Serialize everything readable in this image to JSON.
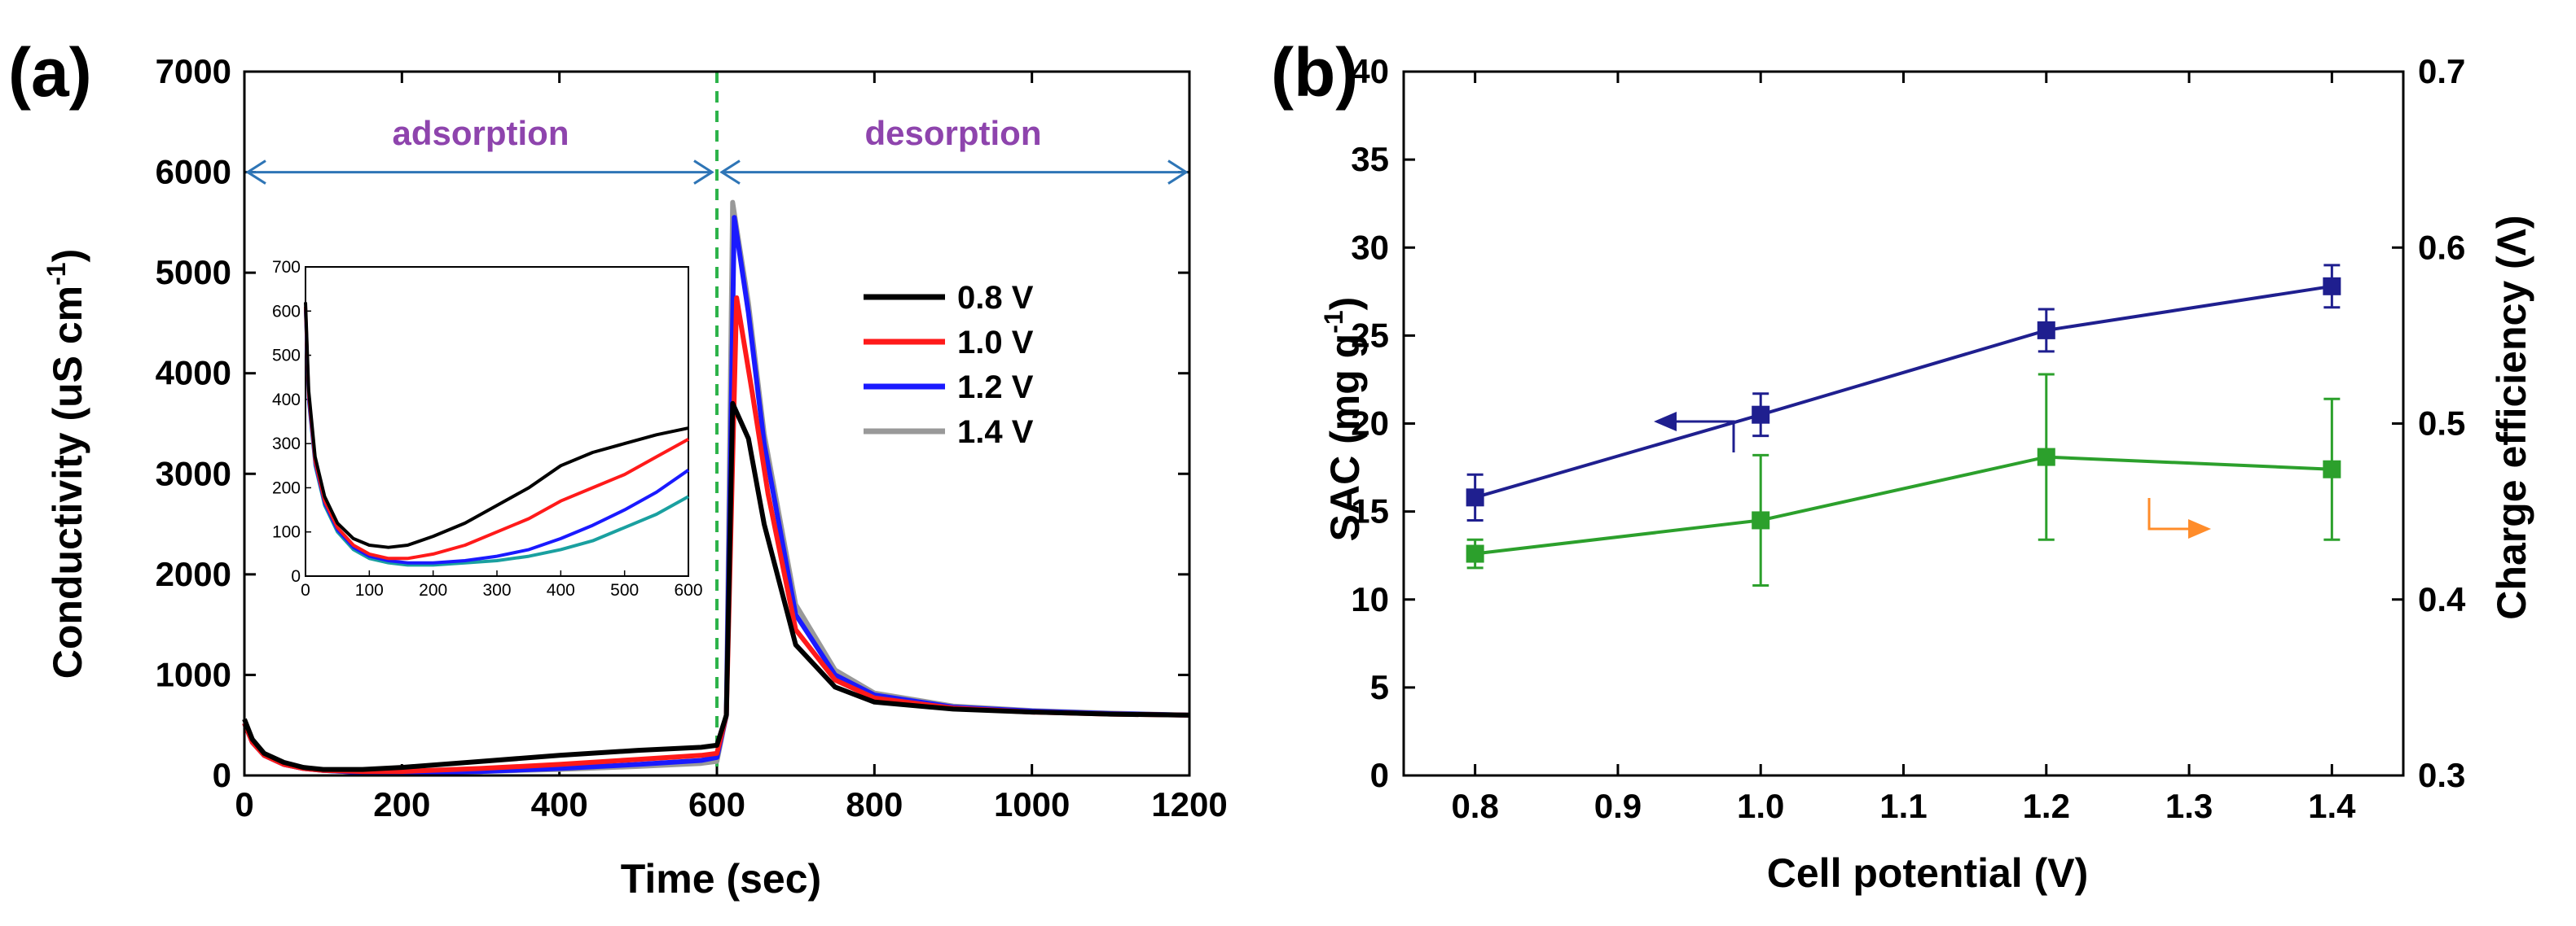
{
  "chart_data": [
    {
      "type": "line",
      "panel_label": "(a)",
      "xlabel": "Time (sec)",
      "ylabel": "Conductivity (uS cm",
      "ylabel_sup": "-1",
      "ylabel_close": ")",
      "xlim": [
        0,
        1200
      ],
      "ylim": [
        0,
        7000
      ],
      "xticks": [
        "0",
        "200",
        "400",
        "600",
        "800",
        "1000",
        "1200"
      ],
      "yticks": [
        "0",
        "1000",
        "2000",
        "3000",
        "4000",
        "5000",
        "6000",
        "7000"
      ],
      "annotations": {
        "adsorption": "adsorption",
        "desorption": "desorption",
        "phase_boundary_x": 600,
        "arrow_level_y": 6000
      },
      "colors": {
        "adsorption_text": "#8e44ad",
        "arrow": "#2e75b6",
        "boundary": "#2db34a"
      },
      "series": [
        {
          "name": "0.8 V",
          "color": "#000000",
          "x": [
            0,
            10,
            25,
            50,
            75,
            100,
            150,
            200,
            300,
            400,
            500,
            580,
            600,
            612,
            620,
            640,
            660,
            700,
            750,
            800,
            900,
            1000,
            1100,
            1200
          ],
          "y": [
            560,
            360,
            220,
            130,
            80,
            60,
            60,
            80,
            140,
            200,
            250,
            280,
            300,
            600,
            3700,
            3350,
            2500,
            1300,
            880,
            730,
            660,
            630,
            610,
            600
          ]
        },
        {
          "name": "1.0 V",
          "color": "#ff1a1a",
          "x": [
            0,
            10,
            25,
            50,
            75,
            100,
            150,
            200,
            300,
            400,
            500,
            580,
            600,
            612,
            625,
            645,
            665,
            700,
            750,
            800,
            900,
            1000,
            1100,
            1200
          ],
          "y": [
            520,
            330,
            200,
            110,
            70,
            50,
            40,
            40,
            70,
            110,
            160,
            200,
            220,
            600,
            4750,
            3800,
            2800,
            1450,
            950,
            770,
            670,
            630,
            610,
            600
          ]
        },
        {
          "name": "1.2 V",
          "color": "#1a1aff",
          "x": [
            0,
            10,
            25,
            50,
            75,
            100,
            150,
            200,
            300,
            400,
            500,
            580,
            600,
            612,
            622,
            640,
            660,
            700,
            750,
            800,
            900,
            1000,
            1100,
            1200
          ],
          "y": [
            520,
            330,
            200,
            110,
            70,
            50,
            30,
            30,
            40,
            70,
            110,
            150,
            180,
            600,
            5550,
            4600,
            3300,
            1600,
            1000,
            800,
            680,
            640,
            615,
            600
          ]
        },
        {
          "name": "1.4 V",
          "color": "#999999",
          "x": [
            0,
            10,
            25,
            50,
            75,
            100,
            150,
            200,
            300,
            400,
            500,
            580,
            600,
            612,
            620,
            640,
            660,
            700,
            750,
            800,
            900,
            1000,
            1100,
            1200
          ],
          "y": [
            520,
            330,
            200,
            110,
            70,
            50,
            30,
            30,
            40,
            60,
            90,
            120,
            140,
            600,
            5700,
            4700,
            3400,
            1700,
            1050,
            820,
            690,
            645,
            620,
            600
          ]
        }
      ],
      "inset": {
        "xlim": [
          0,
          600
        ],
        "ylim": [
          0,
          700
        ],
        "xticks": [
          "0",
          "100",
          "200",
          "300",
          "400",
          "500",
          "600"
        ],
        "yticks": [
          "0",
          "100",
          "200",
          "300",
          "400",
          "500",
          "600",
          "700"
        ],
        "series": [
          {
            "name": "0.8 V",
            "color": "#000000",
            "x": [
              0,
              5,
              15,
              30,
              50,
              75,
              100,
              130,
              160,
              200,
              250,
              300,
              350,
              400,
              450,
              500,
              550,
              600
            ],
            "y": [
              620,
              420,
              270,
              180,
              120,
              85,
              70,
              65,
              70,
              90,
              120,
              160,
              200,
              250,
              280,
              300,
              320,
              335
            ]
          },
          {
            "name": "1.0 V",
            "color": "#ff1a1a",
            "x": [
              0,
              5,
              15,
              30,
              50,
              75,
              100,
              130,
              160,
              200,
              250,
              300,
              350,
              400,
              450,
              500,
              550,
              600
            ],
            "y": [
              610,
              410,
              260,
              170,
              110,
              70,
              50,
              40,
              40,
              50,
              70,
              100,
              130,
              170,
              200,
              230,
              270,
              310
            ]
          },
          {
            "name": "1.2 V",
            "color": "#1a1aff",
            "x": [
              0,
              5,
              15,
              30,
              50,
              75,
              100,
              130,
              160,
              200,
              250,
              300,
              350,
              400,
              450,
              500,
              550,
              600
            ],
            "y": [
              605,
              400,
              255,
              165,
              105,
              65,
              45,
              35,
              30,
              30,
              35,
              45,
              60,
              85,
              115,
              150,
              190,
              240
            ]
          },
          {
            "name": "1.4 V",
            "color": "#1aa0a0",
            "x": [
              0,
              5,
              15,
              30,
              50,
              75,
              100,
              130,
              160,
              200,
              250,
              300,
              350,
              400,
              450,
              500,
              550,
              600
            ],
            "y": [
              600,
              395,
              250,
              160,
              100,
              60,
              40,
              30,
              25,
              25,
              30,
              35,
              45,
              60,
              80,
              110,
              140,
              180
            ]
          }
        ]
      }
    },
    {
      "type": "line",
      "panel_label": "(b)",
      "xlabel": "Cell potential (V)",
      "ylabel": "SAC (mg g",
      "ylabel_sup": "-1",
      "ylabel_close": ")",
      "y2label": "Charge efficiency (Λ)",
      "xlim": [
        0.75,
        1.45
      ],
      "ylim": [
        0,
        40
      ],
      "y2lim": [
        0.3,
        0.7
      ],
      "xticks": [
        "0.8",
        "0.9",
        "1.0",
        "1.1",
        "1.2",
        "1.3",
        "1.4"
      ],
      "yticks": [
        "0",
        "5",
        "10",
        "15",
        "20",
        "25",
        "30",
        "35",
        "40"
      ],
      "y2ticks": [
        "0.3",
        "0.4",
        "0.5",
        "0.6",
        "0.7"
      ],
      "series": [
        {
          "name": "SAC",
          "axis": "left",
          "color": "#1f1f8f",
          "x": [
            0.8,
            1.0,
            1.2,
            1.4
          ],
          "y": [
            15.8,
            20.5,
            25.3,
            27.8
          ],
          "err": [
            1.3,
            1.2,
            1.2,
            1.2
          ]
        },
        {
          "name": "Charge efficiency",
          "axis": "right",
          "color": "#2ca02c",
          "x": [
            0.8,
            1.0,
            1.2,
            1.4
          ],
          "y": [
            0.426,
            0.445,
            0.481,
            0.474
          ],
          "err": [
            0.008,
            0.037,
            0.047,
            0.04
          ]
        }
      ],
      "colors": {
        "left_arrow": "#1f1f8f",
        "right_arrow": "#ff8c2a"
      }
    }
  ]
}
